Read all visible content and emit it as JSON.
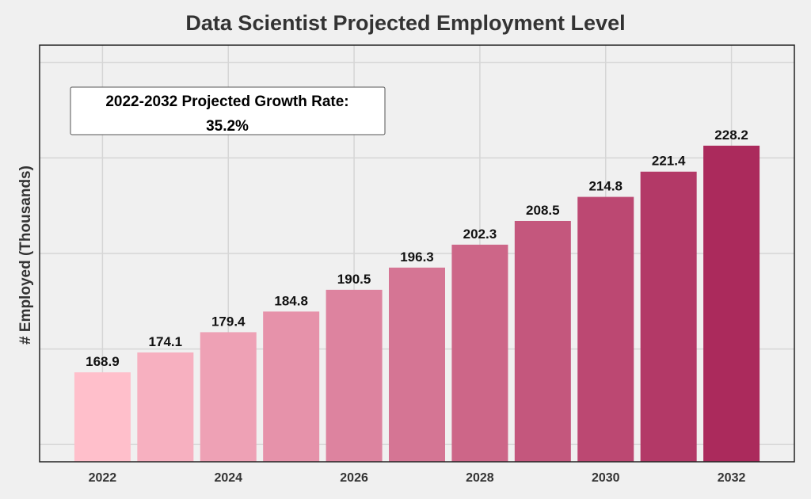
{
  "chart_data": {
    "type": "bar",
    "title": "Data Scientist Projected Employment Level",
    "xlabel": "",
    "ylabel": "# Employed (Thousands)",
    "categories": [
      2022,
      2023,
      2024,
      2025,
      2026,
      2027,
      2028,
      2029,
      2030,
      2031,
      2032
    ],
    "values": [
      168.9,
      174.1,
      179.4,
      184.8,
      190.5,
      196.3,
      202.3,
      208.5,
      214.8,
      221.4,
      228.2
    ],
    "data_labels": [
      "168.9",
      "174.1",
      "179.4",
      "184.8",
      "190.5",
      "196.3",
      "202.3",
      "208.5",
      "214.8",
      "221.4",
      "228.2"
    ],
    "x_tick_labels": [
      "2022",
      "2024",
      "2026",
      "2028",
      "2030",
      "2032"
    ],
    "x_ticks": [
      2022,
      2024,
      2026,
      2028,
      2030,
      2032
    ],
    "y_gridlines": [
      150,
      175,
      200,
      225,
      250
    ],
    "y_tick_labels_shown": false,
    "xlim": [
      2021,
      2033
    ],
    "ylim": [
      145.5,
      254.5
    ],
    "grid": true,
    "legend": "none",
    "color_start": "#ffbfcb",
    "color_end": "#ab2a5c",
    "annotation": {
      "line1": "2022-2032 Projected Growth Rate:",
      "line2": "35.2%"
    }
  }
}
